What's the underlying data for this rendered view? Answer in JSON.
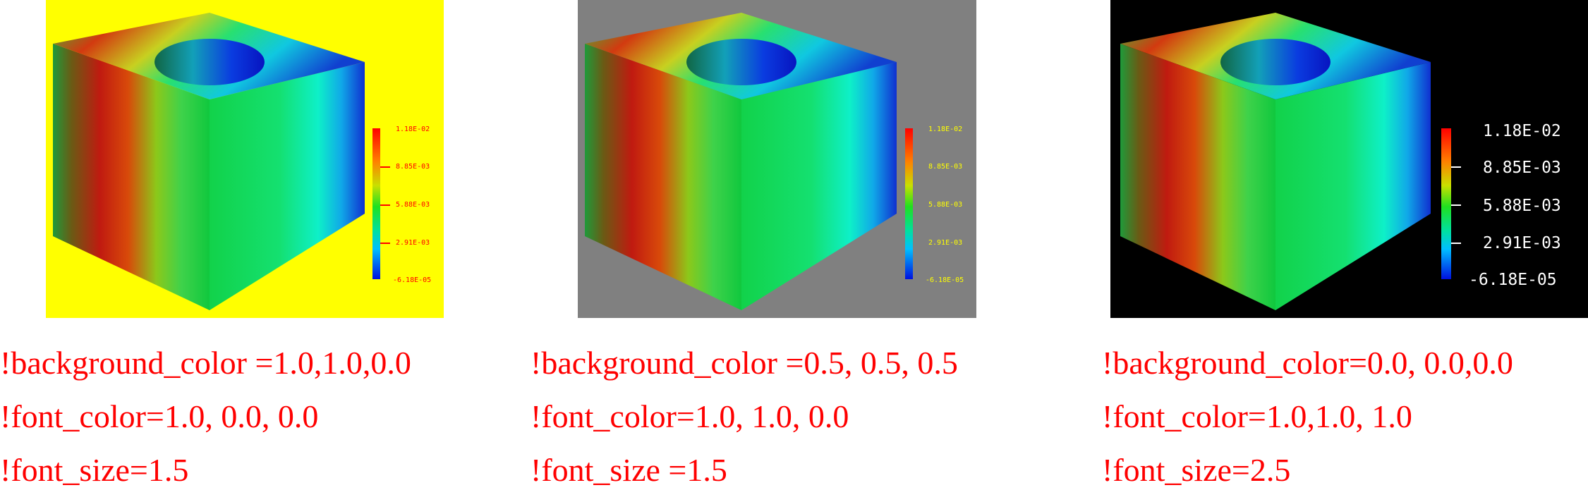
{
  "panels": [
    {
      "background": "#ffff00",
      "font_color": "#ff0000",
      "font_size": 1.5,
      "legend_labels": [
        "1.18E-02",
        "8.85E-03",
        "5.88E-03",
        "2.91E-03",
        "-6.18E-05"
      ],
      "captions": [
        "!background_color =1.0,1.0,0.0",
        "!font_color=1.0, 0.0, 0.0",
        "!font_size=1.5"
      ]
    },
    {
      "background": "#808080",
      "font_color": "#ffff00",
      "font_size": 1.5,
      "legend_labels": [
        "1.18E-02",
        "8.85E-03",
        "5.88E-03",
        "2.91E-03",
        "-6.18E-05"
      ],
      "captions": [
        "!background_color =0.5, 0.5, 0.5",
        "!font_color=1.0, 1.0, 0.0",
        "!font_size =1.5"
      ]
    },
    {
      "background": "#000000",
      "font_color": "#ffffff",
      "font_size": 2.5,
      "legend_labels": [
        "1.18E-02",
        "8.85E-03",
        "5.88E-03",
        "2.91E-03",
        "-6.18E-05"
      ],
      "captions": [
        "!background_color=0.0, 0.0,0.0",
        "!font_color=1.0,1.0, 1.0",
        "!font_size=2.5"
      ]
    }
  ]
}
